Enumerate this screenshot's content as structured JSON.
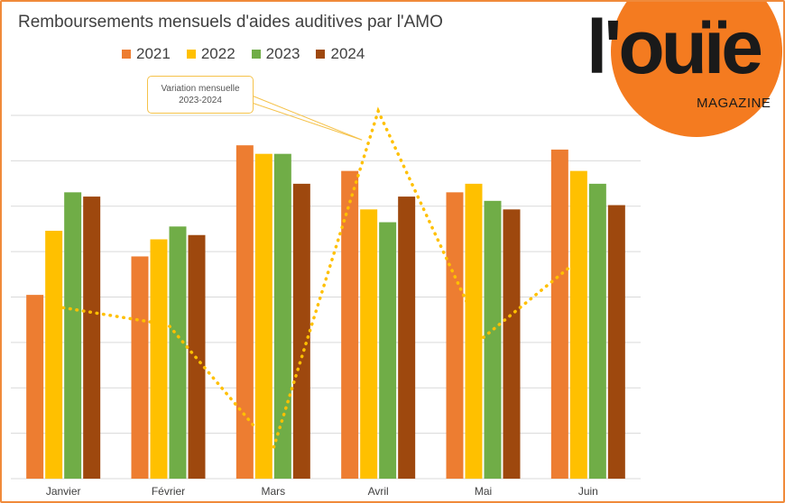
{
  "chart_data": {
    "type": "bar",
    "title": "Remboursements mensuels d'aides auditives par l'AMO",
    "categories": [
      "Janvier",
      "Février",
      "Mars",
      "Avril",
      "Mai",
      "Juin"
    ],
    "series": [
      {
        "name": "2021",
        "color": "#ed7d31",
        "values": [
          4.3,
          5.2,
          7.8,
          7.2,
          6.7,
          7.7
        ]
      },
      {
        "name": "2022",
        "color": "#ffc000",
        "values": [
          5.8,
          5.6,
          7.6,
          6.3,
          6.9,
          7.2
        ]
      },
      {
        "name": "2023",
        "color": "#70ad47",
        "values": [
          6.7,
          5.9,
          7.6,
          6.0,
          6.5,
          6.9
        ]
      },
      {
        "name": "2024",
        "color": "#9e480e",
        "values": [
          6.6,
          5.7,
          6.9,
          6.6,
          6.3,
          6.4
        ]
      }
    ],
    "line": {
      "name": "Variation mensuelle 2023-2024",
      "color": "#ffc000",
      "style": "dotted",
      "values": [
        4.0,
        3.6,
        0.7,
        8.6,
        3.3,
        5.3
      ]
    },
    "ylim": [
      0,
      8.5
    ],
    "gridlines": 8,
    "legend_position": "top",
    "annotation": {
      "line1": "Variation mensuelle",
      "line2": "2023-2024"
    }
  },
  "logo": {
    "wordmark": "l'ouïe",
    "subtitle": "MAGAZINE"
  }
}
